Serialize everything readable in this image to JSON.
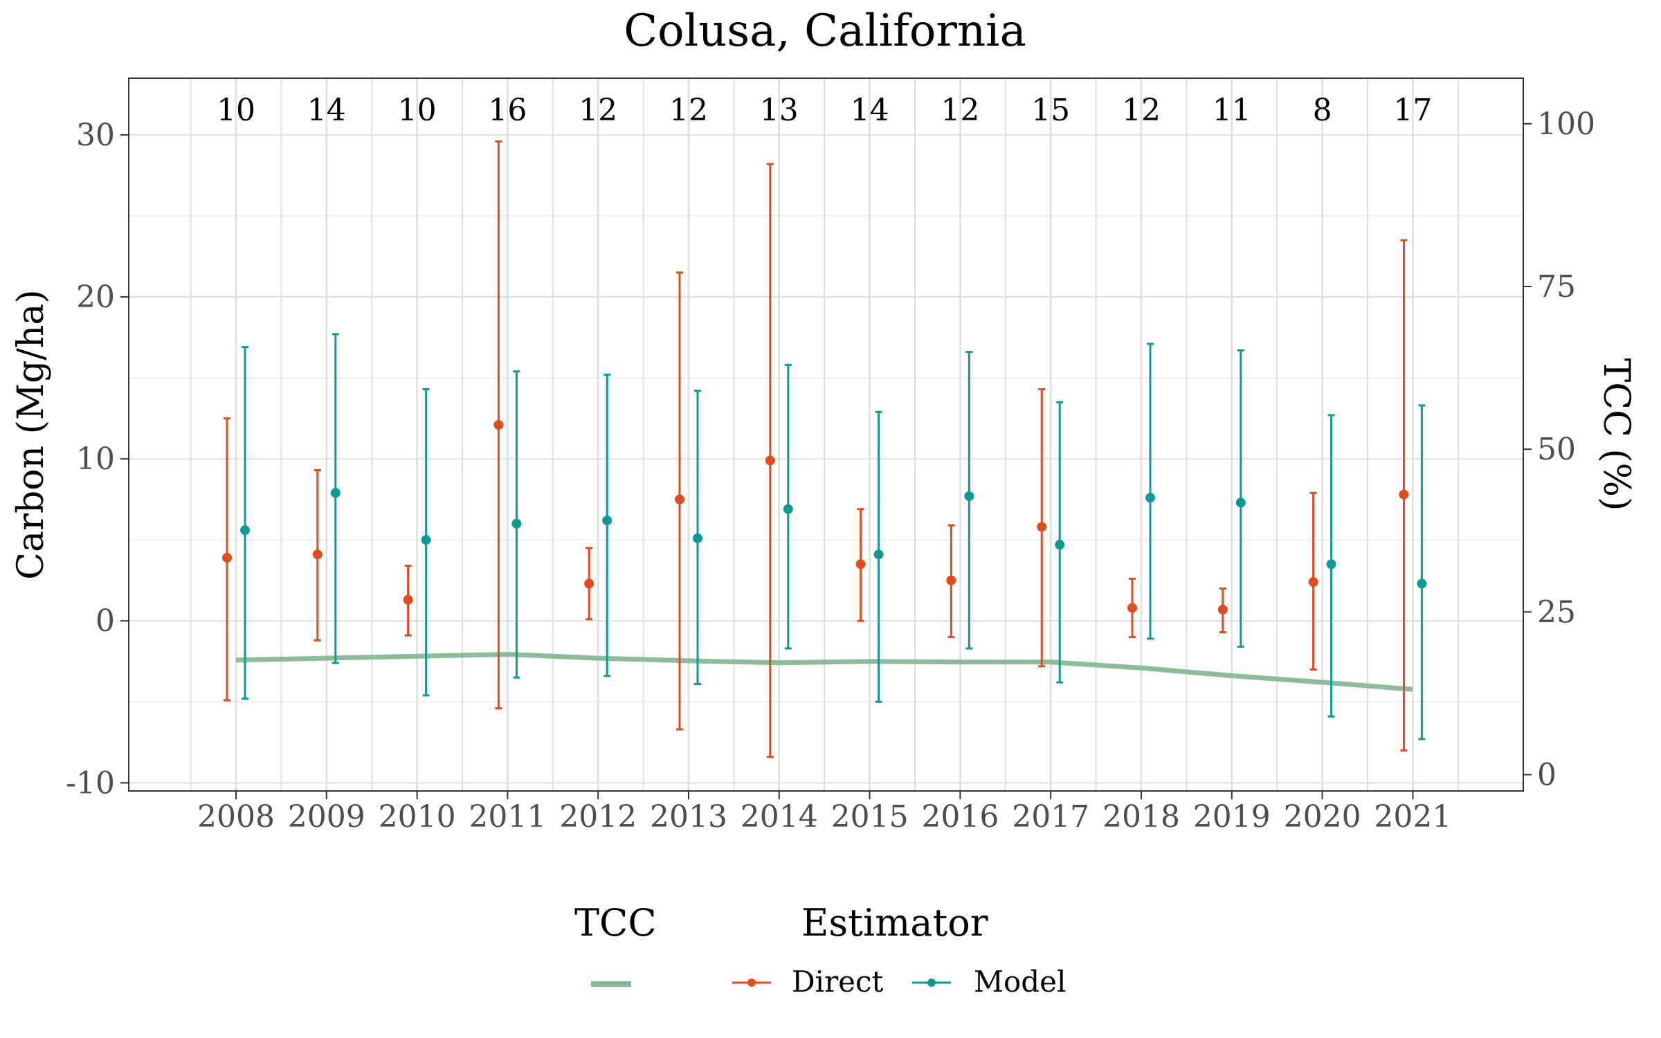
{
  "chart_data": {
    "type": "line",
    "title": "Colusa, California",
    "ylabel": "Carbon (Mg/ha)",
    "y2label": "TCC (%)",
    "ylim": [
      -10.5,
      33.5
    ],
    "y2lim": [
      -2.5,
      107
    ],
    "yticks": [
      -10,
      0,
      10,
      20,
      30
    ],
    "y2ticks": [
      0,
      25,
      50,
      75,
      100
    ],
    "grid": true,
    "categories": [
      "2008",
      "2009",
      "2010",
      "2011",
      "2012",
      "2013",
      "2014",
      "2015",
      "2016",
      "2017",
      "2018",
      "2019",
      "2020",
      "2021"
    ],
    "sample_counts": [
      "10",
      "14",
      "10",
      "16",
      "12",
      "12",
      "13",
      "14",
      "12",
      "15",
      "12",
      "11",
      "8",
      "17"
    ],
    "series": [
      {
        "name": "Direct",
        "color": "#e34a1e",
        "values": [
          3.9,
          4.1,
          1.3,
          12.1,
          2.3,
          7.5,
          9.9,
          3.5,
          2.5,
          5.8,
          0.8,
          0.7,
          2.4,
          7.8
        ],
        "lower": [
          -4.9,
          -1.2,
          -0.9,
          -5.4,
          0.1,
          -6.7,
          -8.4,
          0.0,
          -1.0,
          -2.8,
          -1.0,
          -0.7,
          -3.0,
          -8.0
        ],
        "upper": [
          12.5,
          9.3,
          3.4,
          29.6,
          4.5,
          21.5,
          28.2,
          6.9,
          5.9,
          14.3,
          2.6,
          2.0,
          7.9,
          23.5
        ]
      },
      {
        "name": "Model",
        "color": "#0e9a94",
        "values": [
          5.6,
          7.9,
          5.0,
          6.0,
          6.2,
          5.1,
          6.9,
          4.1,
          7.7,
          4.7,
          7.6,
          7.3,
          3.5,
          2.3
        ],
        "lower": [
          -4.8,
          -2.6,
          -4.6,
          -3.5,
          -3.4,
          -3.9,
          -1.7,
          -5.0,
          -1.7,
          -3.8,
          -1.1,
          -1.6,
          -5.9,
          -7.3
        ],
        "upper": [
          16.9,
          17.7,
          14.3,
          15.4,
          15.2,
          14.2,
          15.8,
          12.9,
          16.6,
          13.5,
          17.1,
          16.7,
          12.7,
          13.3
        ]
      },
      {
        "name": "TCC",
        "axis": "right",
        "color": "#86b996",
        "values": [
          17.6,
          17.9,
          18.2,
          18.5,
          17.9,
          17.5,
          17.2,
          17.4,
          17.3,
          17.3,
          16.4,
          15.2,
          14.2,
          13.1
        ]
      }
    ],
    "legend": {
      "position": "bottom",
      "tcc_title": "TCC",
      "estimator_title": "Estimator",
      "items": [
        "Direct",
        "Model"
      ]
    }
  }
}
